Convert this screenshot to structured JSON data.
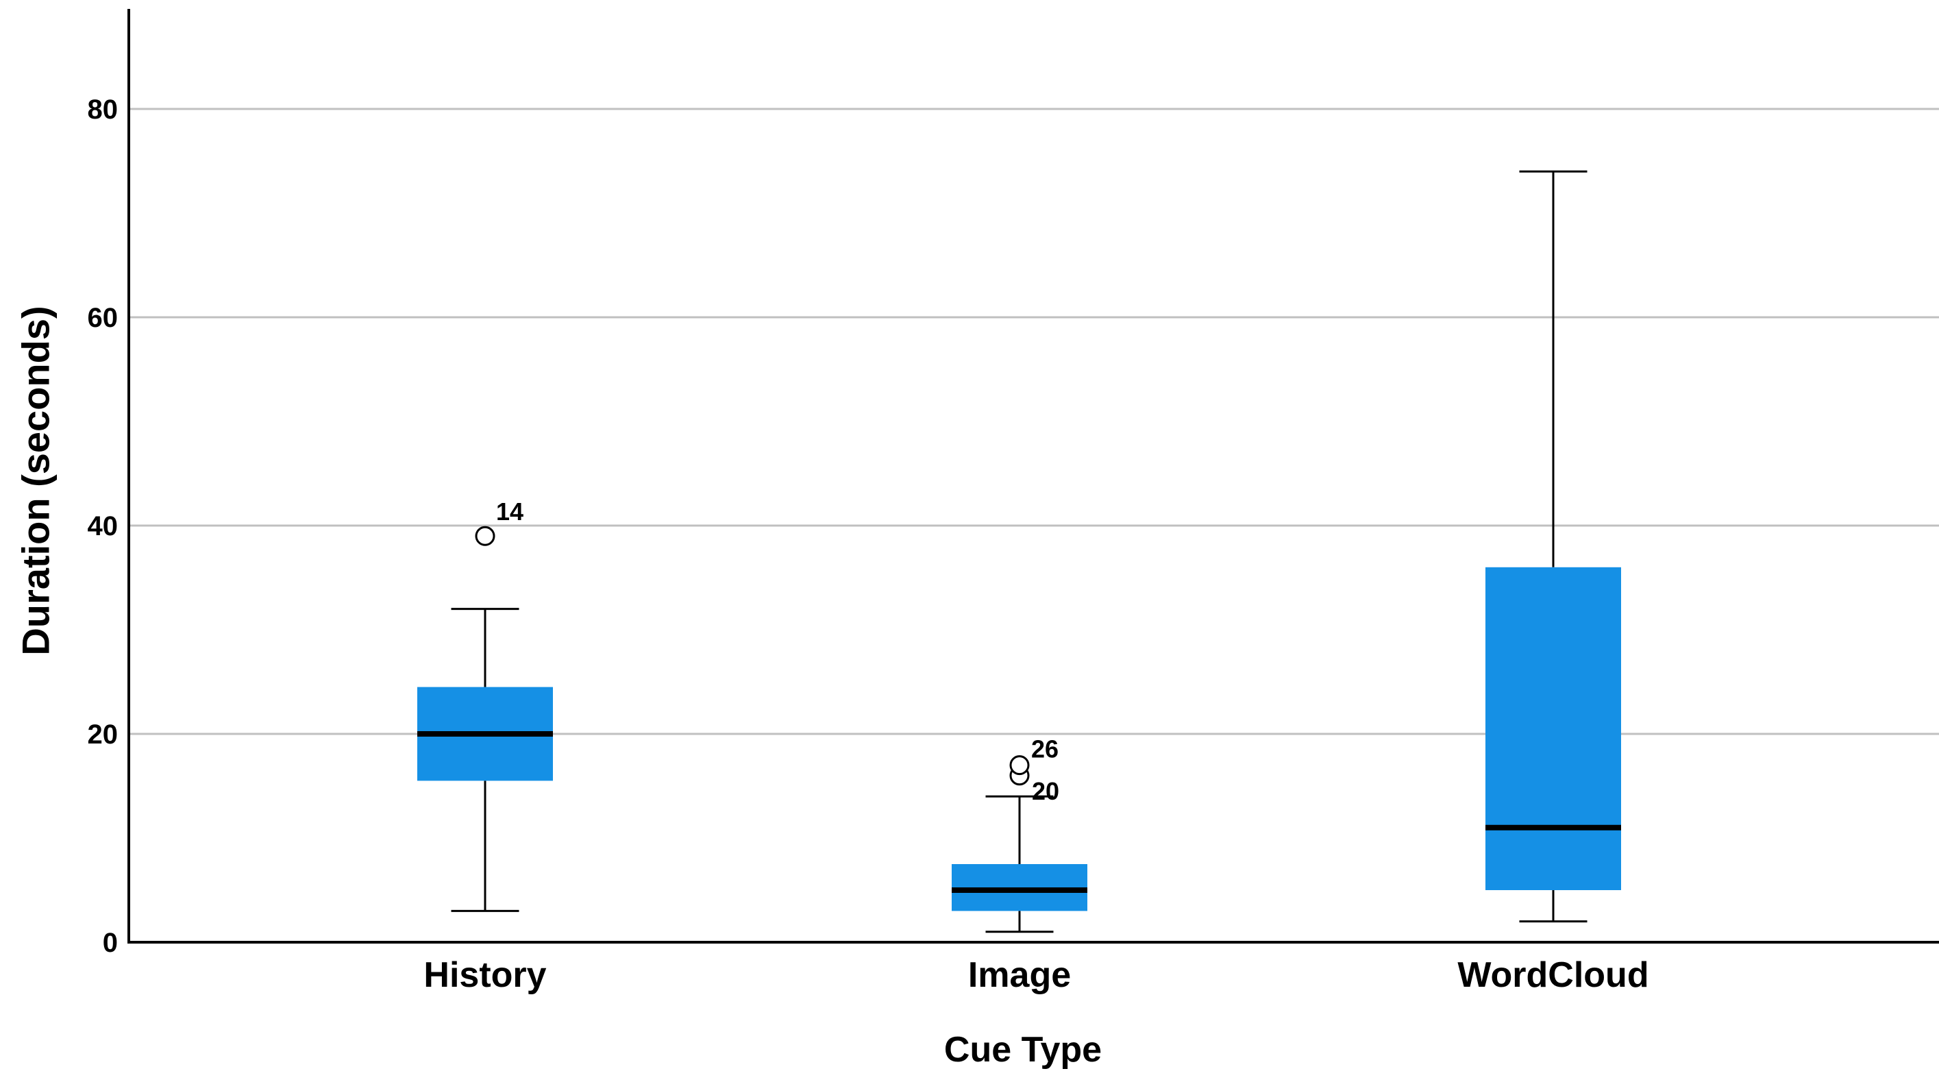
{
  "chart_data": {
    "type": "boxplot",
    "title": "",
    "xlabel": "Cue Type",
    "ylabel": "Duration (seconds)",
    "categories": [
      "History",
      "Image",
      "WordCloud"
    ],
    "y_ticks": [
      0,
      20,
      40,
      60,
      80
    ],
    "ylim": [
      0,
      89.5
    ],
    "grid": "horizontal gridlines at each y tick, behind boxes",
    "legend": "none",
    "series": [
      {
        "category": "History",
        "min": 3,
        "q1": 15.5,
        "median": 20,
        "q3": 24.5,
        "max": 32,
        "outliers": [
          {
            "value": 39,
            "label": "14",
            "label_dx": 36,
            "label_dy": -23
          }
        ]
      },
      {
        "category": "Image",
        "min": 1,
        "q1": 3,
        "median": 5,
        "q3": 7.5,
        "max": 14,
        "outliers": [
          {
            "value": 16,
            "label": "20",
            "label_dx": 38,
            "label_dy": 35
          },
          {
            "value": 17,
            "label": "26",
            "label_dx": 37,
            "label_dy": -11
          }
        ]
      },
      {
        "category": "WordCloud",
        "min": 2,
        "q1": 5,
        "median": 11,
        "q3": 36,
        "max": 74,
        "outliers": []
      }
    ],
    "colors": {
      "box_fill": "#1590e5",
      "median_line": "#000000",
      "whisker": "#000000",
      "outlier_stroke": "#000000",
      "gridline": "#c0c0c0",
      "axis_line": "#000000",
      "text": "#000000",
      "background": "#ffffff"
    }
  }
}
